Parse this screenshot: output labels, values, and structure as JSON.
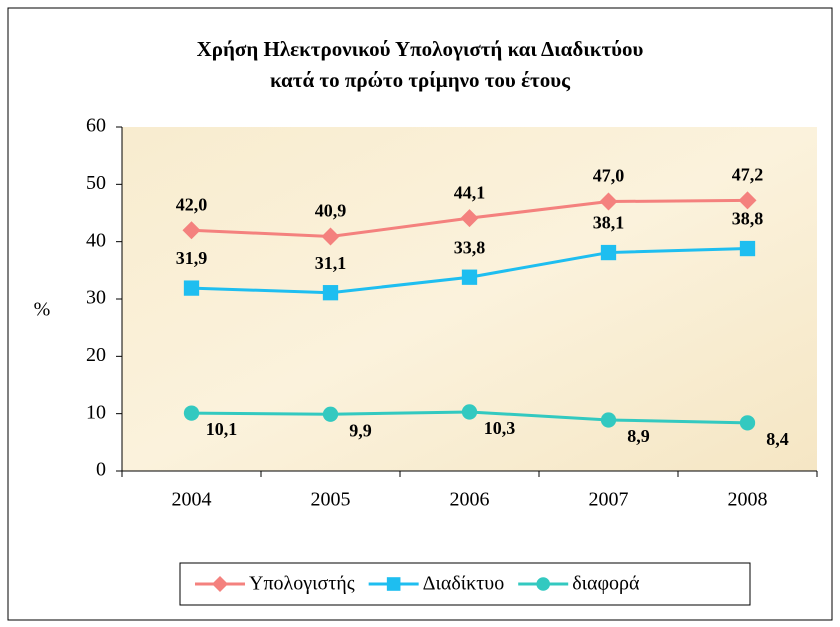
{
  "chart_data": {
    "type": "line",
    "title": [
      "Χρήση Ηλεκτρονικού Υπολογιστή και Διαδικτύου",
      "κατά το πρώτο τρίμηνο του έτους"
    ],
    "ylabel": "%",
    "categories": [
      "2004",
      "2005",
      "2006",
      "2007",
      "2008"
    ],
    "series": [
      {
        "name": "Υπολογιστής",
        "color": "#f4817e",
        "marker": "diamond",
        "values": [
          42.0,
          40.9,
          44.1,
          47.0,
          47.2
        ],
        "value_labels": [
          "42,0",
          "40,9",
          "44,1",
          "47,0",
          "47,2"
        ]
      },
      {
        "name": "Διαδίκτυο",
        "color": "#1ebef0",
        "marker": "square",
        "values": [
          31.9,
          31.1,
          33.8,
          38.1,
          38.8
        ],
        "value_labels": [
          "31,9",
          "31,1",
          "33,8",
          "38,1",
          "38,8"
        ]
      },
      {
        "name": "διαφορά",
        "color": "#33c9c0",
        "marker": "circle",
        "values": [
          10.1,
          9.9,
          10.3,
          8.9,
          8.4
        ],
        "value_labels": [
          "10,1",
          "9,9",
          "10,3",
          "8,9",
          "8,4"
        ]
      }
    ],
    "ylim": [
      0,
      60
    ],
    "yticks": [
      0,
      10,
      20,
      30,
      40,
      50,
      60
    ],
    "grid": false,
    "legend": "bottom"
  }
}
